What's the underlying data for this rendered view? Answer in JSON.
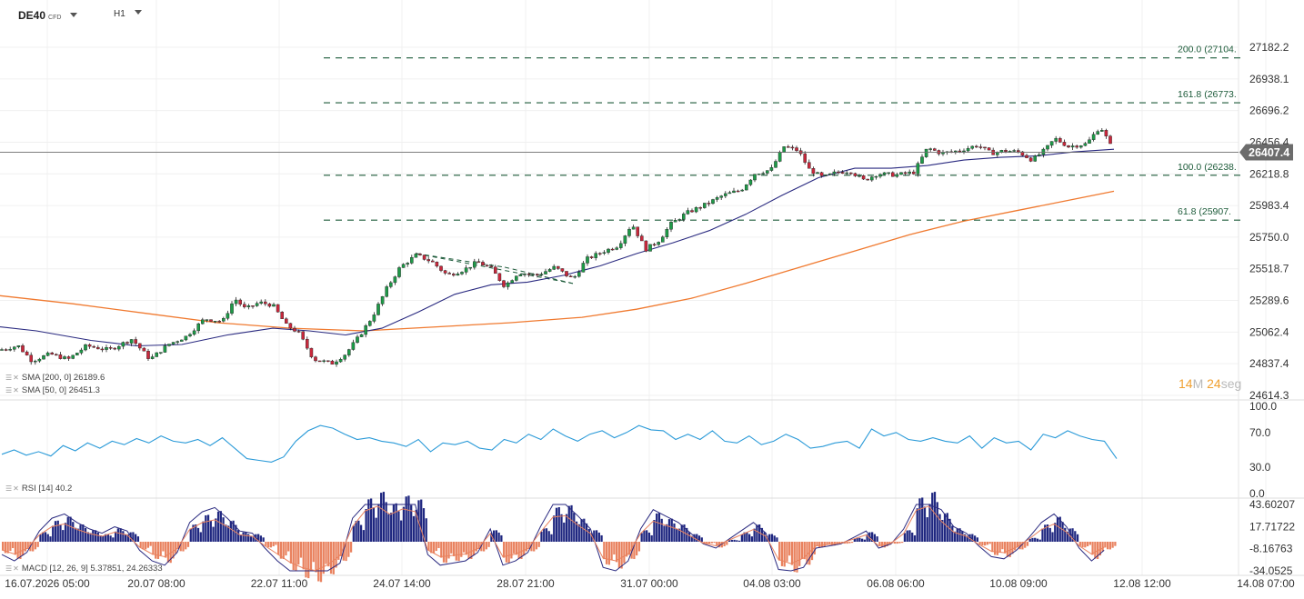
{
  "header": {
    "symbol": "DE40",
    "instrument_type": "CFD",
    "timeframe": "H1"
  },
  "price": {
    "current": "26407.4",
    "current_value": 26407.4,
    "color": "#6c6c6c"
  },
  "countdown": {
    "minutes": "14",
    "minutes_unit": "M",
    "seconds": "24",
    "seconds_unit": "seg"
  },
  "indicators": {
    "sma200": {
      "label": "SMA [200, 0] 26189.6",
      "color": "#f07a30"
    },
    "sma50": {
      "label": "SMA [50, 0] 26451.3",
      "color": "#2a2a80"
    },
    "rsi": {
      "label": "RSI [14] 40.2",
      "color": "#2a9ad8"
    },
    "macd": {
      "label": "MACD [12, 26, 9] 5.37851, 24.26333",
      "pos_color": "#1f2780",
      "neg_color": "#e9825f"
    }
  },
  "chart_data": {
    "type": "candlestick",
    "x_tick_labels": [
      "16.07.2026 05:00",
      "20.07 08:00",
      "22.07 11:00",
      "24.07 14:00",
      "28.07 21:00",
      "31.07 00:00",
      "04.08 03:00",
      "06.08 06:00",
      "10.08 09:00",
      "12.08 12:00",
      "14.08 07:00"
    ],
    "y_tick_labels": [
      "27182.2",
      "26938.1",
      "26696.2",
      "26456.4",
      "26218.8",
      "25983.4",
      "25750.0",
      "25518.7",
      "25289.6",
      "25062.4",
      "24837.4",
      "24614.3"
    ],
    "y_range": [
      24614.3,
      27182.2
    ],
    "fib_levels": [
      {
        "label": "200.0 (27104.",
        "value": 27104
      },
      {
        "label": "161.8 (26773.",
        "value": 26773
      },
      {
        "label": "100.0 (26238.",
        "value": 26238
      },
      {
        "label": "61.8 (25907.",
        "value": 25907
      }
    ],
    "close_path": [
      [
        0,
        24950
      ],
      [
        20,
        24980
      ],
      [
        35,
        24870
      ],
      [
        55,
        24920
      ],
      [
        75,
        24880
      ],
      [
        95,
        24980
      ],
      [
        120,
        24950
      ],
      [
        145,
        25030
      ],
      [
        165,
        24880
      ],
      [
        185,
        24990
      ],
      [
        205,
        25050
      ],
      [
        225,
        25180
      ],
      [
        245,
        25160
      ],
      [
        258,
        25330
      ],
      [
        270,
        25250
      ],
      [
        285,
        25300
      ],
      [
        300,
        25280
      ],
      [
        315,
        25130
      ],
      [
        328,
        25080
      ],
      [
        345,
        24880
      ],
      [
        365,
        24850
      ],
      [
        380,
        24920
      ],
      [
        395,
        25050
      ],
      [
        410,
        25200
      ],
      [
        425,
        25400
      ],
      [
        440,
        25560
      ],
      [
        458,
        25650
      ],
      [
        475,
        25600
      ],
      [
        492,
        25500
      ],
      [
        510,
        25540
      ],
      [
        525,
        25600
      ],
      [
        540,
        25550
      ],
      [
        555,
        25420
      ],
      [
        570,
        25520
      ],
      [
        590,
        25500
      ],
      [
        610,
        25560
      ],
      [
        630,
        25470
      ],
      [
        645,
        25620
      ],
      [
        665,
        25680
      ],
      [
        680,
        25720
      ],
      [
        695,
        25880
      ],
      [
        710,
        25690
      ],
      [
        725,
        25760
      ],
      [
        738,
        25880
      ],
      [
        755,
        25960
      ],
      [
        775,
        26020
      ],
      [
        795,
        26090
      ],
      [
        815,
        26130
      ],
      [
        830,
        26250
      ],
      [
        848,
        26280
      ],
      [
        862,
        26450
      ],
      [
        878,
        26420
      ],
      [
        890,
        26280
      ],
      [
        905,
        26220
      ],
      [
        920,
        26260
      ],
      [
        935,
        26270
      ],
      [
        950,
        26200
      ],
      [
        965,
        26250
      ],
      [
        985,
        26240
      ],
      [
        1005,
        26260
      ],
      [
        1020,
        26440
      ],
      [
        1035,
        26400
      ],
      [
        1055,
        26420
      ],
      [
        1075,
        26460
      ],
      [
        1090,
        26400
      ],
      [
        1105,
        26420
      ],
      [
        1120,
        26410
      ],
      [
        1135,
        26350
      ],
      [
        1150,
        26430
      ],
      [
        1160,
        26510
      ],
      [
        1175,
        26450
      ],
      [
        1195,
        26470
      ],
      [
        1210,
        26600
      ],
      [
        1218,
        26500
      ],
      [
        1225,
        26407
      ]
    ],
    "sma50_path": [
      [
        0,
        25120
      ],
      [
        40,
        25090
      ],
      [
        100,
        25020
      ],
      [
        150,
        24980
      ],
      [
        200,
        24990
      ],
      [
        250,
        25060
      ],
      [
        300,
        25110
      ],
      [
        340,
        25090
      ],
      [
        380,
        25060
      ],
      [
        420,
        25110
      ],
      [
        460,
        25230
      ],
      [
        500,
        25360
      ],
      [
        540,
        25430
      ],
      [
        580,
        25450
      ],
      [
        620,
        25500
      ],
      [
        660,
        25570
      ],
      [
        700,
        25660
      ],
      [
        740,
        25740
      ],
      [
        780,
        25830
      ],
      [
        820,
        25950
      ],
      [
        860,
        26090
      ],
      [
        900,
        26220
      ],
      [
        940,
        26290
      ],
      [
        980,
        26290
      ],
      [
        1020,
        26310
      ],
      [
        1060,
        26350
      ],
      [
        1100,
        26370
      ],
      [
        1140,
        26380
      ],
      [
        1180,
        26410
      ],
      [
        1225,
        26430
      ]
    ],
    "sma200_path": [
      [
        0,
        25350
      ],
      [
        80,
        25290
      ],
      [
        160,
        25220
      ],
      [
        240,
        25150
      ],
      [
        320,
        25110
      ],
      [
        400,
        25090
      ],
      [
        480,
        25120
      ],
      [
        560,
        25150
      ],
      [
        640,
        25190
      ],
      [
        700,
        25250
      ],
      [
        760,
        25330
      ],
      [
        820,
        25440
      ],
      [
        880,
        25560
      ],
      [
        940,
        25680
      ],
      [
        1000,
        25800
      ],
      [
        1060,
        25900
      ],
      [
        1120,
        25980
      ],
      [
        1180,
        26060
      ],
      [
        1225,
        26120
      ]
    ],
    "trendlines": [
      {
        "from": [
          458,
          25660
        ],
        "to": [
          555,
          25560
        ]
      },
      {
        "from": [
          458,
          25660
        ],
        "to": [
          630,
          25440
        ]
      },
      {
        "from": [
          555,
          25560
        ],
        "to": [
          630,
          25440
        ]
      }
    ],
    "rsi": {
      "y_tick_labels": [
        "100.0",
        "70.0",
        "30.0",
        "0.0"
      ],
      "range": [
        0,
        100
      ],
      "values": [
        45,
        50,
        44,
        48,
        43,
        55,
        49,
        58,
        52,
        60,
        56,
        63,
        58,
        66,
        60,
        58,
        62,
        55,
        64,
        52,
        40,
        38,
        36,
        42,
        60,
        72,
        78,
        75,
        68,
        62,
        64,
        60,
        58,
        54,
        62,
        48,
        58,
        56,
        60,
        52,
        50,
        62,
        58,
        68,
        62,
        74,
        66,
        60,
        68,
        72,
        64,
        70,
        78,
        73,
        72,
        62,
        68,
        62,
        72,
        60,
        58,
        66,
        56,
        60,
        68,
        62,
        52,
        54,
        58,
        60,
        52,
        74,
        66,
        70,
        62,
        60,
        64,
        60,
        58,
        66,
        52,
        64,
        58,
        60,
        50,
        68,
        64,
        72,
        66,
        62,
        60,
        40
      ]
    },
    "macd": {
      "y_tick_labels": [
        "43.60207",
        "17.71722",
        "-8.16763",
        "-34.0525"
      ],
      "range": [
        -34.0525,
        43.60207
      ],
      "hist": [
        -12,
        -18,
        -10,
        10,
        22,
        26,
        18,
        12,
        8,
        14,
        10,
        -8,
        -18,
        -22,
        -10,
        18,
        28,
        32,
        22,
        10,
        8,
        -6,
        -18,
        -30,
        -38,
        -42,
        -34,
        -20,
        22,
        45,
        52,
        40,
        48,
        44,
        -12,
        -22,
        -20,
        -18,
        -10,
        12,
        -22,
        -18,
        -10,
        14,
        36,
        38,
        24,
        12,
        -24,
        -28,
        -18,
        12,
        30,
        24,
        18,
        8,
        -2,
        -6,
        2,
        10,
        18,
        8,
        -26,
        -32,
        -24,
        -6,
        -4,
        -2,
        4,
        10,
        -6,
        -2,
        12,
        46,
        52,
        30,
        14,
        8,
        -4,
        -14,
        -16,
        -8,
        4,
        18,
        26,
        14,
        -6,
        -18,
        -8
      ]
    },
    "grid": true,
    "legend": "bottom-left"
  }
}
